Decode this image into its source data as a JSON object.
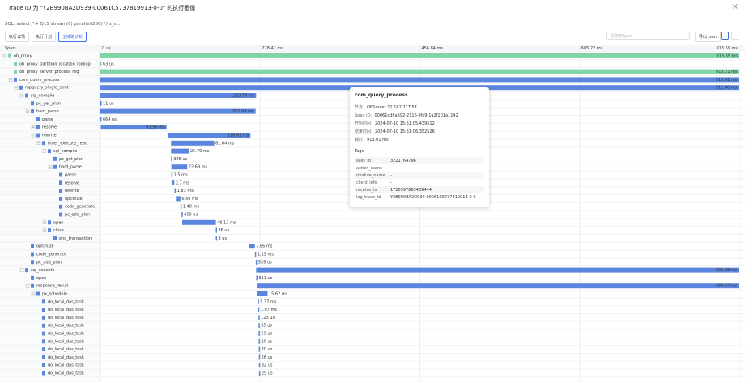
{
  "header": {
    "title": "Trace ID 为 \"Y2B990BA2D939-00061C5737819913-0-0\" 的执行画像",
    "close": "×",
    "sql": "SQL: select /*+ Q15 stream(0) parallel(256) */ s_s...",
    "tabs": [
      "执行详情",
      "执行计划",
      "全链路诊断"
    ],
    "active_tab": 2,
    "search_placeholder": "请搜索Span",
    "export": "导出 Json"
  },
  "timeline": {
    "column_title": "Span",
    "xlim": [
      0,
      913.69
    ],
    "xticks": [
      {
        "value": 0,
        "label": "0 us"
      },
      {
        "value": 228.42,
        "label": "228.42 ms"
      },
      {
        "value": 456.84,
        "label": "456.84 ms"
      },
      {
        "value": 685.27,
        "label": "685.27 ms"
      },
      {
        "value": 913.69,
        "label": "913.69 ms"
      }
    ],
    "rows": [
      {
        "name": "ob_proxy",
        "depth": 0,
        "start": 0,
        "duration": 913.69,
        "duration_label": "913.69 ms",
        "color": "#7fd6a4"
      },
      {
        "name": "ob_proxy_partition_location_lookup",
        "depth": 1,
        "start": 0,
        "duration": 0.063,
        "duration_label": "63 us",
        "color": "#7fd6a4"
      },
      {
        "name": "ob_proxy_server_process_req",
        "depth": 1,
        "start": 0,
        "duration": 913.21,
        "duration_label": "913.21 ms",
        "color": "#7fd6a4"
      },
      {
        "name": "com_query_process",
        "depth": 1,
        "start": 0,
        "duration": 913.01,
        "duration_label": "913.01 ms",
        "color": "#5b86e0"
      },
      {
        "name": "mpquery_single_stmt",
        "depth": 2,
        "start": 0,
        "duration": 912.86,
        "duration_label": "912.86 ms",
        "color": "#5b86e0"
      },
      {
        "name": "sql_compile",
        "depth": 3,
        "start": 0,
        "duration": 222.74,
        "duration_label": "222.74 ms",
        "color": "#5b86e0"
      },
      {
        "name": "pc_get_plan",
        "depth": 4,
        "start": 0,
        "duration": 0.011,
        "duration_label": "11 us",
        "color": "#5b86e0"
      },
      {
        "name": "hard_parse",
        "depth": 4,
        "start": 0,
        "duration": 221.93,
        "duration_label": "221.93 ms",
        "color": "#5b86e0"
      },
      {
        "name": "parse",
        "depth": 5,
        "start": 0,
        "duration": 0.664,
        "duration_label": "664 us",
        "color": "#5b86e0"
      },
      {
        "name": "resolve",
        "depth": 5,
        "start": 0.7,
        "duration": 93.9,
        "duration_label": "93.90 ms",
        "color": "#5b86e0",
        "collapsed": true
      },
      {
        "name": "rewrite",
        "depth": 5,
        "start": 96,
        "duration": 118.61,
        "duration_label": "118.61 ms",
        "color": "#5b86e0"
      },
      {
        "name": "inner_execute_read",
        "depth": 6,
        "start": 101,
        "duration": 61.64,
        "duration_label": "61.64 ms",
        "color": "#5b86e0"
      },
      {
        "name": "sql_compile",
        "depth": 7,
        "start": 101,
        "duration": 25.79,
        "duration_label": "25.79 ms",
        "color": "#5b86e0"
      },
      {
        "name": "pc_get_plan",
        "depth": 8,
        "start": 101,
        "duration": 0.395,
        "duration_label": "395 us",
        "color": "#5b86e0"
      },
      {
        "name": "hard_parse",
        "depth": 8,
        "start": 101.5,
        "duration": 22.69,
        "duration_label": "22.69 ms",
        "color": "#5b86e0"
      },
      {
        "name": "parse",
        "depth": 9,
        "start": 101.5,
        "duration": 1.5,
        "duration_label": "1.5 ms",
        "color": "#5b86e0"
      },
      {
        "name": "resolve",
        "depth": 9,
        "start": 103,
        "duration": 2.7,
        "duration_label": "2.7 ms",
        "color": "#5b86e0"
      },
      {
        "name": "rewrite",
        "depth": 9,
        "start": 106,
        "duration": 1.83,
        "duration_label": "1.83 ms",
        "color": "#5b86e0"
      },
      {
        "name": "optimize",
        "depth": 9,
        "start": 108,
        "duration": 6.5,
        "duration_label": "6.50 ms",
        "color": "#5b86e0"
      },
      {
        "name": "code_generate",
        "depth": 9,
        "start": 114.5,
        "duration": 1.48,
        "duration_label": "1.48 ms",
        "color": "#5b86e0"
      },
      {
        "name": "pc_add_plan",
        "depth": 9,
        "start": 116,
        "duration": 0.45,
        "duration_label": "450 us",
        "color": "#5b86e0"
      },
      {
        "name": "open",
        "depth": 7,
        "start": 117,
        "duration": 48.12,
        "duration_label": "48.12 ms",
        "color": "#5b86e0",
        "collapsed": true
      },
      {
        "name": "close",
        "depth": 7,
        "start": 165,
        "duration": 0.036,
        "duration_label": "36 us",
        "color": "#5b86e0"
      },
      {
        "name": "end_transaction",
        "depth": 8,
        "start": 165,
        "duration": 0.003,
        "duration_label": "3 us",
        "color": "#5b86e0"
      },
      {
        "name": "optimize",
        "depth": 4,
        "start": 213,
        "duration": 7.86,
        "duration_label": "7.86 ms",
        "color": "#5b86e0"
      },
      {
        "name": "code_generate",
        "depth": 4,
        "start": 221,
        "duration": 1.19,
        "duration_label": "1.19 ms",
        "color": "#5b86e0"
      },
      {
        "name": "pc_add_plan",
        "depth": 4,
        "start": 222.2,
        "duration": 0.535,
        "duration_label": "535 us",
        "color": "#5b86e0"
      },
      {
        "name": "sql_execute",
        "depth": 3,
        "start": 222.74,
        "duration": 690.28,
        "duration_label": "690.28 ms",
        "color": "#5b86e0"
      },
      {
        "name": "open",
        "depth": 4,
        "start": 222.8,
        "duration": 0.611,
        "duration_label": "611 us",
        "color": "#5b86e0"
      },
      {
        "name": "response_result",
        "depth": 4,
        "start": 223.5,
        "duration": 689.64,
        "duration_label": "689.64 ms",
        "color": "#5b86e0"
      },
      {
        "name": "px_schedule",
        "depth": 5,
        "start": 223.5,
        "duration": 15.62,
        "duration_label": "15.62 ms",
        "color": "#5b86e0"
      },
      {
        "name": "do_local_das_task",
        "depth": 6,
        "start": 225,
        "duration": 1.37,
        "duration_label": "1.37 ms",
        "color": "#5b86e0"
      },
      {
        "name": "do_local_das_task",
        "depth": 6,
        "start": 225.5,
        "duration": 1.07,
        "duration_label": "1.07 ms",
        "color": "#5b86e0"
      },
      {
        "name": "do_local_das_task",
        "depth": 6,
        "start": 226,
        "duration": 0.123,
        "duration_label": "123 us",
        "color": "#5b86e0"
      },
      {
        "name": "do_local_das_task",
        "depth": 6,
        "start": 226.2,
        "duration": 0.035,
        "duration_label": "35 us",
        "color": "#5b86e0"
      },
      {
        "name": "do_local_das_task",
        "depth": 6,
        "start": 226.3,
        "duration": 0.029,
        "duration_label": "29 us",
        "color": "#5b86e0"
      },
      {
        "name": "do_local_das_task",
        "depth": 6,
        "start": 226.4,
        "duration": 0.02,
        "duration_label": "20 us",
        "color": "#5b86e0"
      },
      {
        "name": "do_local_das_task",
        "depth": 6,
        "start": 226.5,
        "duration": 0.02,
        "duration_label": "20 us",
        "color": "#5b86e0"
      },
      {
        "name": "do_local_das_task",
        "depth": 6,
        "start": 226.6,
        "duration": 0.026,
        "duration_label": "26 us",
        "color": "#5b86e0"
      },
      {
        "name": "do_local_das_task",
        "depth": 6,
        "start": 226.7,
        "duration": 0.032,
        "duration_label": "32 us",
        "color": "#5b86e0"
      },
      {
        "name": "do_local_das_task",
        "depth": 6,
        "start": 226.8,
        "duration": 0.025,
        "duration_label": "25 us",
        "color": "#5b86e0"
      }
    ]
  },
  "popup": {
    "title": "com_query_process",
    "fields": [
      {
        "label": "节点：",
        "value": "OBServer 11.162.217.57"
      },
      {
        "label": "Span ID：",
        "value": "00061cdf-a692-2116-9fc9-1a2f101a1142"
      },
      {
        "label": "开始时间：",
        "value": "2024-07-10 15:51:05.439512"
      },
      {
        "label": "结束时间：",
        "value": "2024-07-10 15:51:06.352526"
      },
      {
        "label": "耗时：",
        "value": "913.01 ms"
      }
    ],
    "tags_title": "Tags",
    "tags": [
      [
        "sess_id",
        "3221764796"
      ],
      [
        "action_name",
        "-"
      ],
      [
        "module_name",
        "-"
      ],
      [
        "client_info",
        "-"
      ],
      [
        "receive_ts",
        "1720597865439444"
      ],
      [
        "log_trace_id",
        "Y2B990BA2D939-00061C5737819913-0-0"
      ]
    ]
  }
}
